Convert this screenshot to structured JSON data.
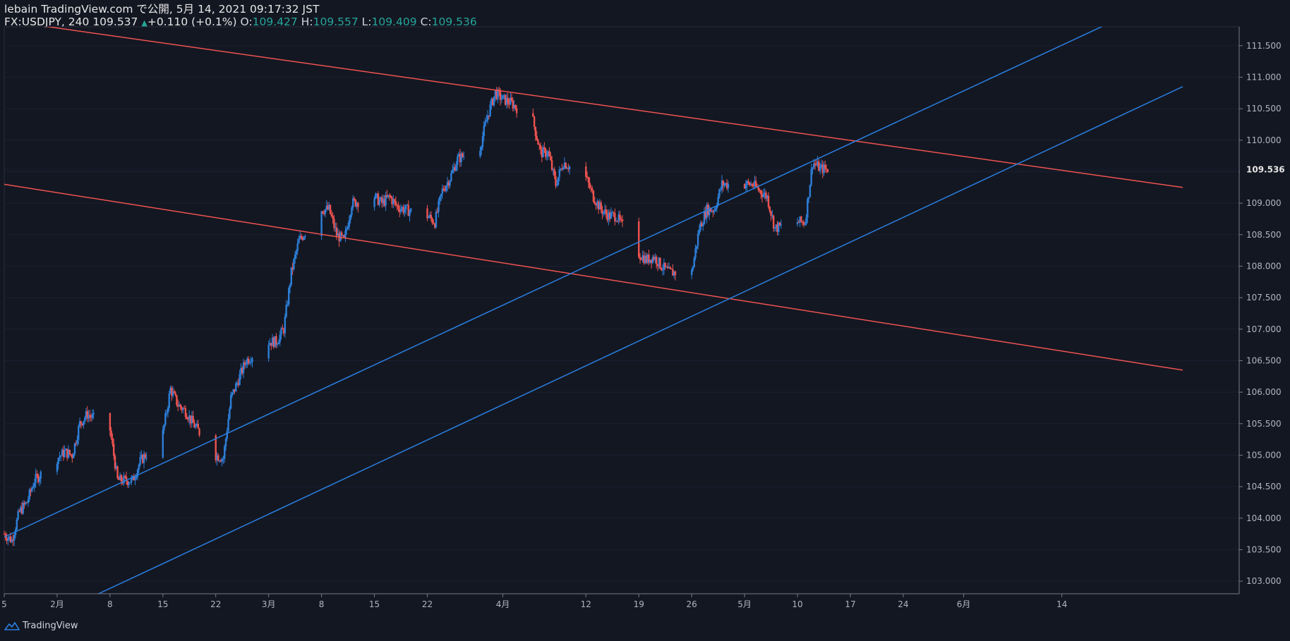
{
  "header": {
    "line1": "lebain TradingView.com で公開, 5月 14, 2021 09:17:32 JST",
    "symbol": "FX:USDJPY, 240",
    "last": "109.537",
    "arrow": "▲",
    "change": "+0.110 (+0.1%)",
    "o_label": "O:",
    "o_value": "109.427",
    "h_label": "H:",
    "h_value": "109.557",
    "l_label": "L:",
    "l_value": "109.409",
    "c_label": "C:",
    "c_value": "109.536"
  },
  "footer": {
    "brand": "TradingView",
    "icon": "tradingview-logo-icon"
  },
  "colors": {
    "background": "#131722",
    "up": "#2d7fd8",
    "down": "#ef5350",
    "grid": "#1c2030",
    "axis_text": "#b2b5be",
    "channel_down": "#ef5350",
    "channel_up": "#2a7fe0"
  },
  "chart_data": {
    "type": "candlestick",
    "ylim": [
      102.8,
      111.8
    ],
    "y_ticks": [
      "103.000",
      "103.500",
      "104.000",
      "104.500",
      "105.000",
      "105.500",
      "106.000",
      "106.500",
      "107.000",
      "107.500",
      "108.000",
      "108.500",
      "109.000",
      "109.500",
      "110.000",
      "110.500",
      "111.000",
      "111.500"
    ],
    "last_price_label": "109.536",
    "x_ticks": [
      {
        "label": "5",
        "date": "2021-01-25"
      },
      {
        "label": "2月",
        "date": "2021-02-01"
      },
      {
        "label": "8",
        "date": "2021-02-08"
      },
      {
        "label": "15",
        "date": "2021-02-15"
      },
      {
        "label": "22",
        "date": "2021-02-22"
      },
      {
        "label": "3月",
        "date": "2021-03-01"
      },
      {
        "label": "8",
        "date": "2021-03-08"
      },
      {
        "label": "15",
        "date": "2021-03-15"
      },
      {
        "label": "22",
        "date": "2021-03-22"
      },
      {
        "label": "4月",
        "date": "2021-04-01"
      },
      {
        "label": "12",
        "date": "2021-04-12"
      },
      {
        "label": "19",
        "date": "2021-04-19"
      },
      {
        "label": "26",
        "date": "2021-04-26"
      },
      {
        "label": "5月",
        "date": "2021-05-03"
      },
      {
        "label": "10",
        "date": "2021-05-10"
      },
      {
        "label": "17",
        "date": "2021-05-17"
      },
      {
        "label": "24",
        "date": "2021-05-24"
      },
      {
        "label": "6月",
        "date": "2021-06-01"
      },
      {
        "label": "14",
        "date": "2021-06-14"
      }
    ],
    "price_path": [
      {
        "date": "2021-01-25",
        "value": 103.75
      },
      {
        "date": "2021-01-26",
        "value": 103.65
      },
      {
        "date": "2021-01-27",
        "value": 104.1
      },
      {
        "date": "2021-01-28",
        "value": 104.25
      },
      {
        "date": "2021-01-29",
        "value": 104.6
      },
      {
        "date": "2021-02-01",
        "value": 104.95
      },
      {
        "date": "2021-02-02",
        "value": 105.05
      },
      {
        "date": "2021-02-03",
        "value": 105.0
      },
      {
        "date": "2021-02-04",
        "value": 105.5
      },
      {
        "date": "2021-02-05",
        "value": 105.65
      },
      {
        "date": "2021-02-08",
        "value": 105.4
      },
      {
        "date": "2021-02-09",
        "value": 104.6
      },
      {
        "date": "2021-02-10",
        "value": 104.6
      },
      {
        "date": "2021-02-11",
        "value": 104.6
      },
      {
        "date": "2021-02-12",
        "value": 104.9
      },
      {
        "date": "2021-02-15",
        "value": 105.35
      },
      {
        "date": "2021-02-16",
        "value": 106.05
      },
      {
        "date": "2021-02-17",
        "value": 105.8
      },
      {
        "date": "2021-02-18",
        "value": 105.7
      },
      {
        "date": "2021-02-19",
        "value": 105.5
      },
      {
        "date": "2021-02-22",
        "value": 105.0
      },
      {
        "date": "2021-02-23",
        "value": 104.95
      },
      {
        "date": "2021-02-24",
        "value": 105.9
      },
      {
        "date": "2021-02-25",
        "value": 106.2
      },
      {
        "date": "2021-02-26",
        "value": 106.5
      },
      {
        "date": "2021-03-01",
        "value": 106.8
      },
      {
        "date": "2021-03-02",
        "value": 106.8
      },
      {
        "date": "2021-03-03",
        "value": 107.0
      },
      {
        "date": "2021-03-04",
        "value": 107.9
      },
      {
        "date": "2021-03-05",
        "value": 108.4
      },
      {
        "date": "2021-03-08",
        "value": 108.9
      },
      {
        "date": "2021-03-09",
        "value": 108.9
      },
      {
        "date": "2021-03-10",
        "value": 108.5
      },
      {
        "date": "2021-03-11",
        "value": 108.4
      },
      {
        "date": "2021-03-12",
        "value": 109.0
      },
      {
        "date": "2021-03-15",
        "value": 109.1
      },
      {
        "date": "2021-03-16",
        "value": 109.0
      },
      {
        "date": "2021-03-17",
        "value": 109.1
      },
      {
        "date": "2021-03-18",
        "value": 108.95
      },
      {
        "date": "2021-03-19",
        "value": 108.9
      },
      {
        "date": "2021-03-22",
        "value": 108.8
      },
      {
        "date": "2021-03-23",
        "value": 108.7
      },
      {
        "date": "2021-03-24",
        "value": 109.2
      },
      {
        "date": "2021-03-25",
        "value": 109.4
      },
      {
        "date": "2021-03-26",
        "value": 109.7
      },
      {
        "date": "2021-03-29",
        "value": 109.9
      },
      {
        "date": "2021-03-30",
        "value": 110.4
      },
      {
        "date": "2021-03-31",
        "value": 110.75
      },
      {
        "date": "2021-04-01",
        "value": 110.65
      },
      {
        "date": "2021-04-02",
        "value": 110.6
      },
      {
        "date": "2021-04-05",
        "value": 110.3
      },
      {
        "date": "2021-04-06",
        "value": 109.8
      },
      {
        "date": "2021-04-07",
        "value": 109.8
      },
      {
        "date": "2021-04-08",
        "value": 109.3
      },
      {
        "date": "2021-04-09",
        "value": 109.65
      },
      {
        "date": "2021-04-12",
        "value": 109.4
      },
      {
        "date": "2021-04-13",
        "value": 109.1
      },
      {
        "date": "2021-04-14",
        "value": 108.9
      },
      {
        "date": "2021-04-15",
        "value": 108.8
      },
      {
        "date": "2021-04-16",
        "value": 108.8
      },
      {
        "date": "2021-04-19",
        "value": 108.2
      },
      {
        "date": "2021-04-20",
        "value": 108.1
      },
      {
        "date": "2021-04-21",
        "value": 108.15
      },
      {
        "date": "2021-04-22",
        "value": 108.0
      },
      {
        "date": "2021-04-23",
        "value": 107.9
      },
      {
        "date": "2021-04-26",
        "value": 107.9
      },
      {
        "date": "2021-04-27",
        "value": 108.6
      },
      {
        "date": "2021-04-28",
        "value": 108.9
      },
      {
        "date": "2021-04-29",
        "value": 108.9
      },
      {
        "date": "2021-04-30",
        "value": 109.3
      },
      {
        "date": "2021-05-03",
        "value": 109.3
      },
      {
        "date": "2021-05-04",
        "value": 109.3
      },
      {
        "date": "2021-05-05",
        "value": 109.2
      },
      {
        "date": "2021-05-06",
        "value": 109.1
      },
      {
        "date": "2021-05-07",
        "value": 108.6
      },
      {
        "date": "2021-05-10",
        "value": 108.7
      },
      {
        "date": "2021-05-11",
        "value": 108.7
      },
      {
        "date": "2021-05-12",
        "value": 109.65
      },
      {
        "date": "2021-05-13",
        "value": 109.55
      },
      {
        "date": "2021-05-14",
        "value": 109.536
      }
    ],
    "trend_lines": [
      {
        "color": "down",
        "points": [
          {
            "date": "2021-01-25",
            "value": 111.9
          },
          {
            "date": "2021-06-30",
            "value": 109.25
          }
        ]
      },
      {
        "color": "down",
        "points": [
          {
            "date": "2021-01-25",
            "value": 109.3
          },
          {
            "date": "2021-06-30",
            "value": 106.35
          }
        ]
      },
      {
        "color": "up",
        "points": [
          {
            "date": "2021-01-25",
            "value": 103.7
          },
          {
            "date": "2021-06-30",
            "value": 112.4
          }
        ]
      },
      {
        "color": "up",
        "points": [
          {
            "date": "2021-01-25",
            "value": 102.1
          },
          {
            "date": "2021-06-30",
            "value": 110.85
          }
        ]
      }
    ]
  }
}
